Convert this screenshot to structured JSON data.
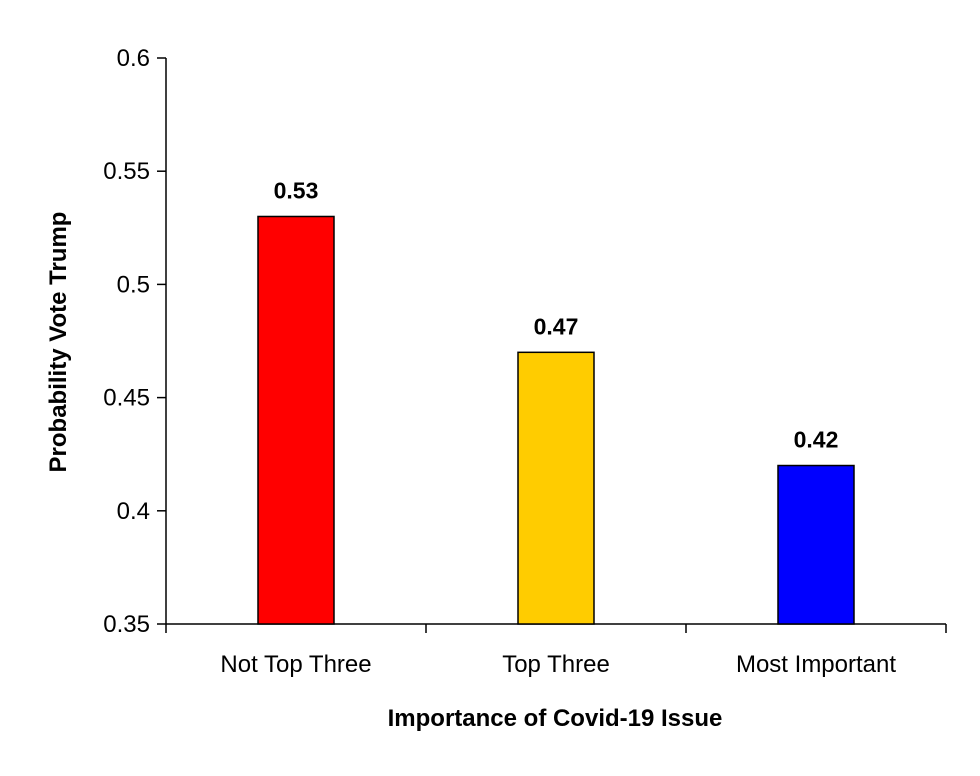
{
  "chart_data": {
    "type": "bar",
    "categories": [
      "Not Top Three",
      "Top Three",
      "Most Important"
    ],
    "values": [
      0.53,
      0.47,
      0.42
    ],
    "data_labels": [
      "0.53",
      "0.47",
      "0.42"
    ],
    "bar_colors": [
      "#ff0000",
      "#ffcc00",
      "#0000ff"
    ],
    "xlabel": "Importance of Covid-19  Issue",
    "ylabel": "Probability Vote Trump",
    "ylim": [
      0.35,
      0.6
    ],
    "yticks": [
      0.35,
      0.4,
      0.45,
      0.5,
      0.55,
      0.6
    ],
    "ytick_labels": [
      "0.35",
      "0.4",
      "0.45",
      "0.5",
      "0.55",
      "0.6"
    ],
    "grid": false,
    "legend": "none"
  }
}
